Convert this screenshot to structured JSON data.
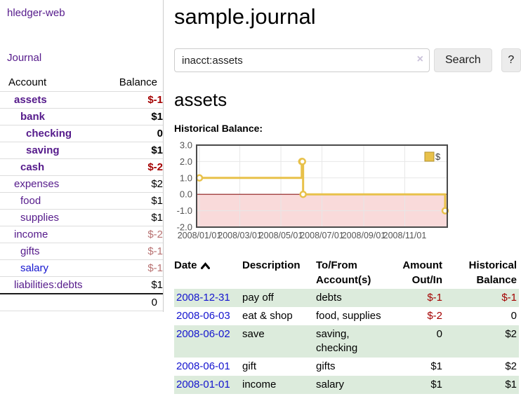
{
  "colors": {
    "link_purple": "#551a8b",
    "link_blue": "#1414cf",
    "negative_strong": "#a40000",
    "negative_soft": "#b87272",
    "row_green": "#dcebdc",
    "chart_line_yellow": "#e8c14a",
    "chart_negative_fill": "#f9dada",
    "chart_zero_line": "#8c1a1a",
    "chart_grid": "#e7e7e7",
    "chart_border": "#4a4a4a",
    "chart_tick_text": "#545454"
  },
  "app": {
    "brand": "hledger-web"
  },
  "nav": {
    "journal": "Journal"
  },
  "sidebar": {
    "header": {
      "account": "Account",
      "balance": "Balance"
    },
    "accounts": [
      {
        "name": "assets",
        "balance": "$-1",
        "indent": 1,
        "bold": true,
        "tone": "strong",
        "link": "purple"
      },
      {
        "name": "bank",
        "balance": "$1",
        "indent": 2,
        "bold": true,
        "tone": "normal",
        "link": "purple"
      },
      {
        "name": "checking",
        "balance": "0",
        "indent": 3,
        "bold": true,
        "tone": "normal",
        "link": "purple"
      },
      {
        "name": "saving",
        "balance": "$1",
        "indent": 3,
        "bold": true,
        "tone": "normal",
        "link": "purple"
      },
      {
        "name": "cash",
        "balance": "$-2",
        "indent": 2,
        "bold": true,
        "tone": "strong",
        "link": "purple"
      },
      {
        "name": "expenses",
        "balance": "$2",
        "indent": 1,
        "bold": false,
        "tone": "normal",
        "link": "purple"
      },
      {
        "name": "food",
        "balance": "$1",
        "indent": 2,
        "bold": false,
        "tone": "normal",
        "link": "purple"
      },
      {
        "name": "supplies",
        "balance": "$1",
        "indent": 2,
        "bold": false,
        "tone": "normal",
        "link": "purple"
      },
      {
        "name": "income",
        "balance": "$-2",
        "indent": 1,
        "bold": false,
        "tone": "soft",
        "link": "purple"
      },
      {
        "name": "gifts",
        "balance": "$-1",
        "indent": 2,
        "bold": false,
        "tone": "soft",
        "link": "purple"
      },
      {
        "name": "salary",
        "balance": "$-1",
        "indent": 2,
        "bold": false,
        "tone": "soft",
        "link": "blue"
      },
      {
        "name": "liabilities:debts",
        "balance": "$1",
        "indent": 1,
        "bold": false,
        "tone": "normal",
        "link": "purple"
      }
    ],
    "total": "0"
  },
  "header": {
    "title": "sample.journal"
  },
  "search": {
    "value": "inacct:assets",
    "clear": "×",
    "button_label": "Search",
    "help_label": "?"
  },
  "content": {
    "heading": "assets",
    "chart_title": "Historical Balance:"
  },
  "chart_data": {
    "type": "line",
    "step": true,
    "title": "Historical Balance",
    "series": [
      {
        "name": "$",
        "points": [
          [
            "2008-01-01",
            1
          ],
          [
            "2008-06-01",
            2
          ],
          [
            "2008-06-02",
            2
          ],
          [
            "2008-06-03",
            0
          ],
          [
            "2008-12-31",
            -1
          ]
        ]
      }
    ],
    "ylim": [
      -2,
      3
    ],
    "yticks": [
      3.0,
      2.0,
      1.0,
      0.0,
      -1.0,
      -2.0
    ],
    "xtick_labels": [
      "2008/01/01",
      "2008/03/01",
      "2008/05/01",
      "2008/07/01",
      "2008/09/01",
      "2008/11/01"
    ],
    "legend": {
      "label": "$",
      "position": "top-right"
    },
    "negative_region_shaded": true,
    "grid": true
  },
  "register": {
    "columns": [
      {
        "label": "Date",
        "sorted": "ascending"
      },
      {
        "label": "Description"
      },
      {
        "label": "To/From Account(s)"
      },
      {
        "label": "Amount Out/In"
      },
      {
        "label": "Historical Balance"
      }
    ],
    "rows": [
      {
        "date": "2008-12-31",
        "description": "pay off",
        "accounts": "debts",
        "amount": "$-1",
        "amount_negative": true,
        "balance": "$-1",
        "balance_negative": true
      },
      {
        "date": "2008-06-03",
        "description": "eat & shop",
        "accounts": "food, supplies",
        "amount": "$-2",
        "amount_negative": true,
        "balance": "0",
        "balance_negative": false
      },
      {
        "date": "2008-06-02",
        "description": "save",
        "accounts": "saving, checking",
        "amount": "0",
        "amount_negative": false,
        "balance": "$2",
        "balance_negative": false
      },
      {
        "date": "2008-06-01",
        "description": "gift",
        "accounts": "gifts",
        "amount": "$1",
        "amount_negative": false,
        "balance": "$2",
        "balance_negative": false
      },
      {
        "date": "2008-01-01",
        "description": "income",
        "accounts": "salary",
        "amount": "$1",
        "amount_negative": false,
        "balance": "$1",
        "balance_negative": false
      }
    ]
  }
}
